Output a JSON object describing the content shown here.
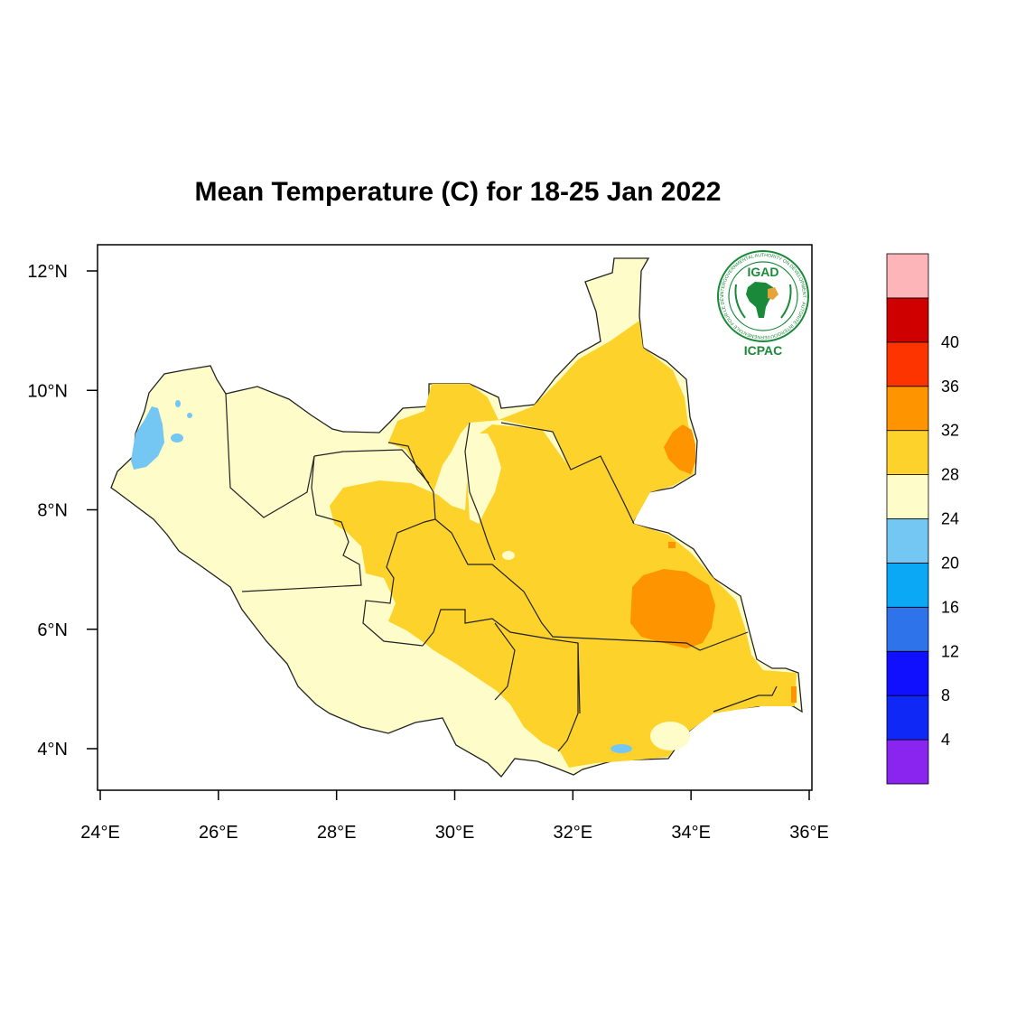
{
  "title": "Mean Temperature (C) for 18-25 Jan 2022",
  "map": {
    "lon_range": [
      24,
      36
    ],
    "lat_range": [
      3.4,
      12.4
    ],
    "x_ticks": [
      {
        "value": 24,
        "label": "24°E"
      },
      {
        "value": 26,
        "label": "26°E"
      },
      {
        "value": 28,
        "label": "28°E"
      },
      {
        "value": 30,
        "label": "30°E"
      },
      {
        "value": 32,
        "label": "32°E"
      },
      {
        "value": 34,
        "label": "34°E"
      },
      {
        "value": 36,
        "label": "36°E"
      }
    ],
    "y_ticks": [
      {
        "value": 4,
        "label": "4°N"
      },
      {
        "value": 6,
        "label": "6°N"
      },
      {
        "value": 8,
        "label": "8°N"
      },
      {
        "value": 10,
        "label": "10°N"
      },
      {
        "value": 12,
        "label": "12°N"
      }
    ],
    "fill_colors": {
      "20-24": "#fefdc9",
      "24-28": "#fdd32b",
      "28-32": "#fd9400",
      "16-20": "#74c6f3"
    }
  },
  "colorbar": {
    "bins": [
      "#8a25f0",
      "#1028f5",
      "#1010ff",
      "#2f73ea",
      "#0aa8f5",
      "#74c6f3",
      "#fefdc9",
      "#fdd32b",
      "#fd9400",
      "#fd3300",
      "#cf0000",
      "#fdb5b9"
    ],
    "labels": [
      "4",
      "8",
      "12",
      "16",
      "20",
      "24",
      "28",
      "32",
      "36",
      "40"
    ]
  },
  "logo": {
    "name": "IGAD",
    "org": "ICPAC",
    "ring_text": "INTERGOVERNMENTAL AUTHORITY ON DEVELOPMENT · AUTORITÉ INTERGOUVERNEMENTALE POUR LE DÉVELOPPEMENT"
  }
}
